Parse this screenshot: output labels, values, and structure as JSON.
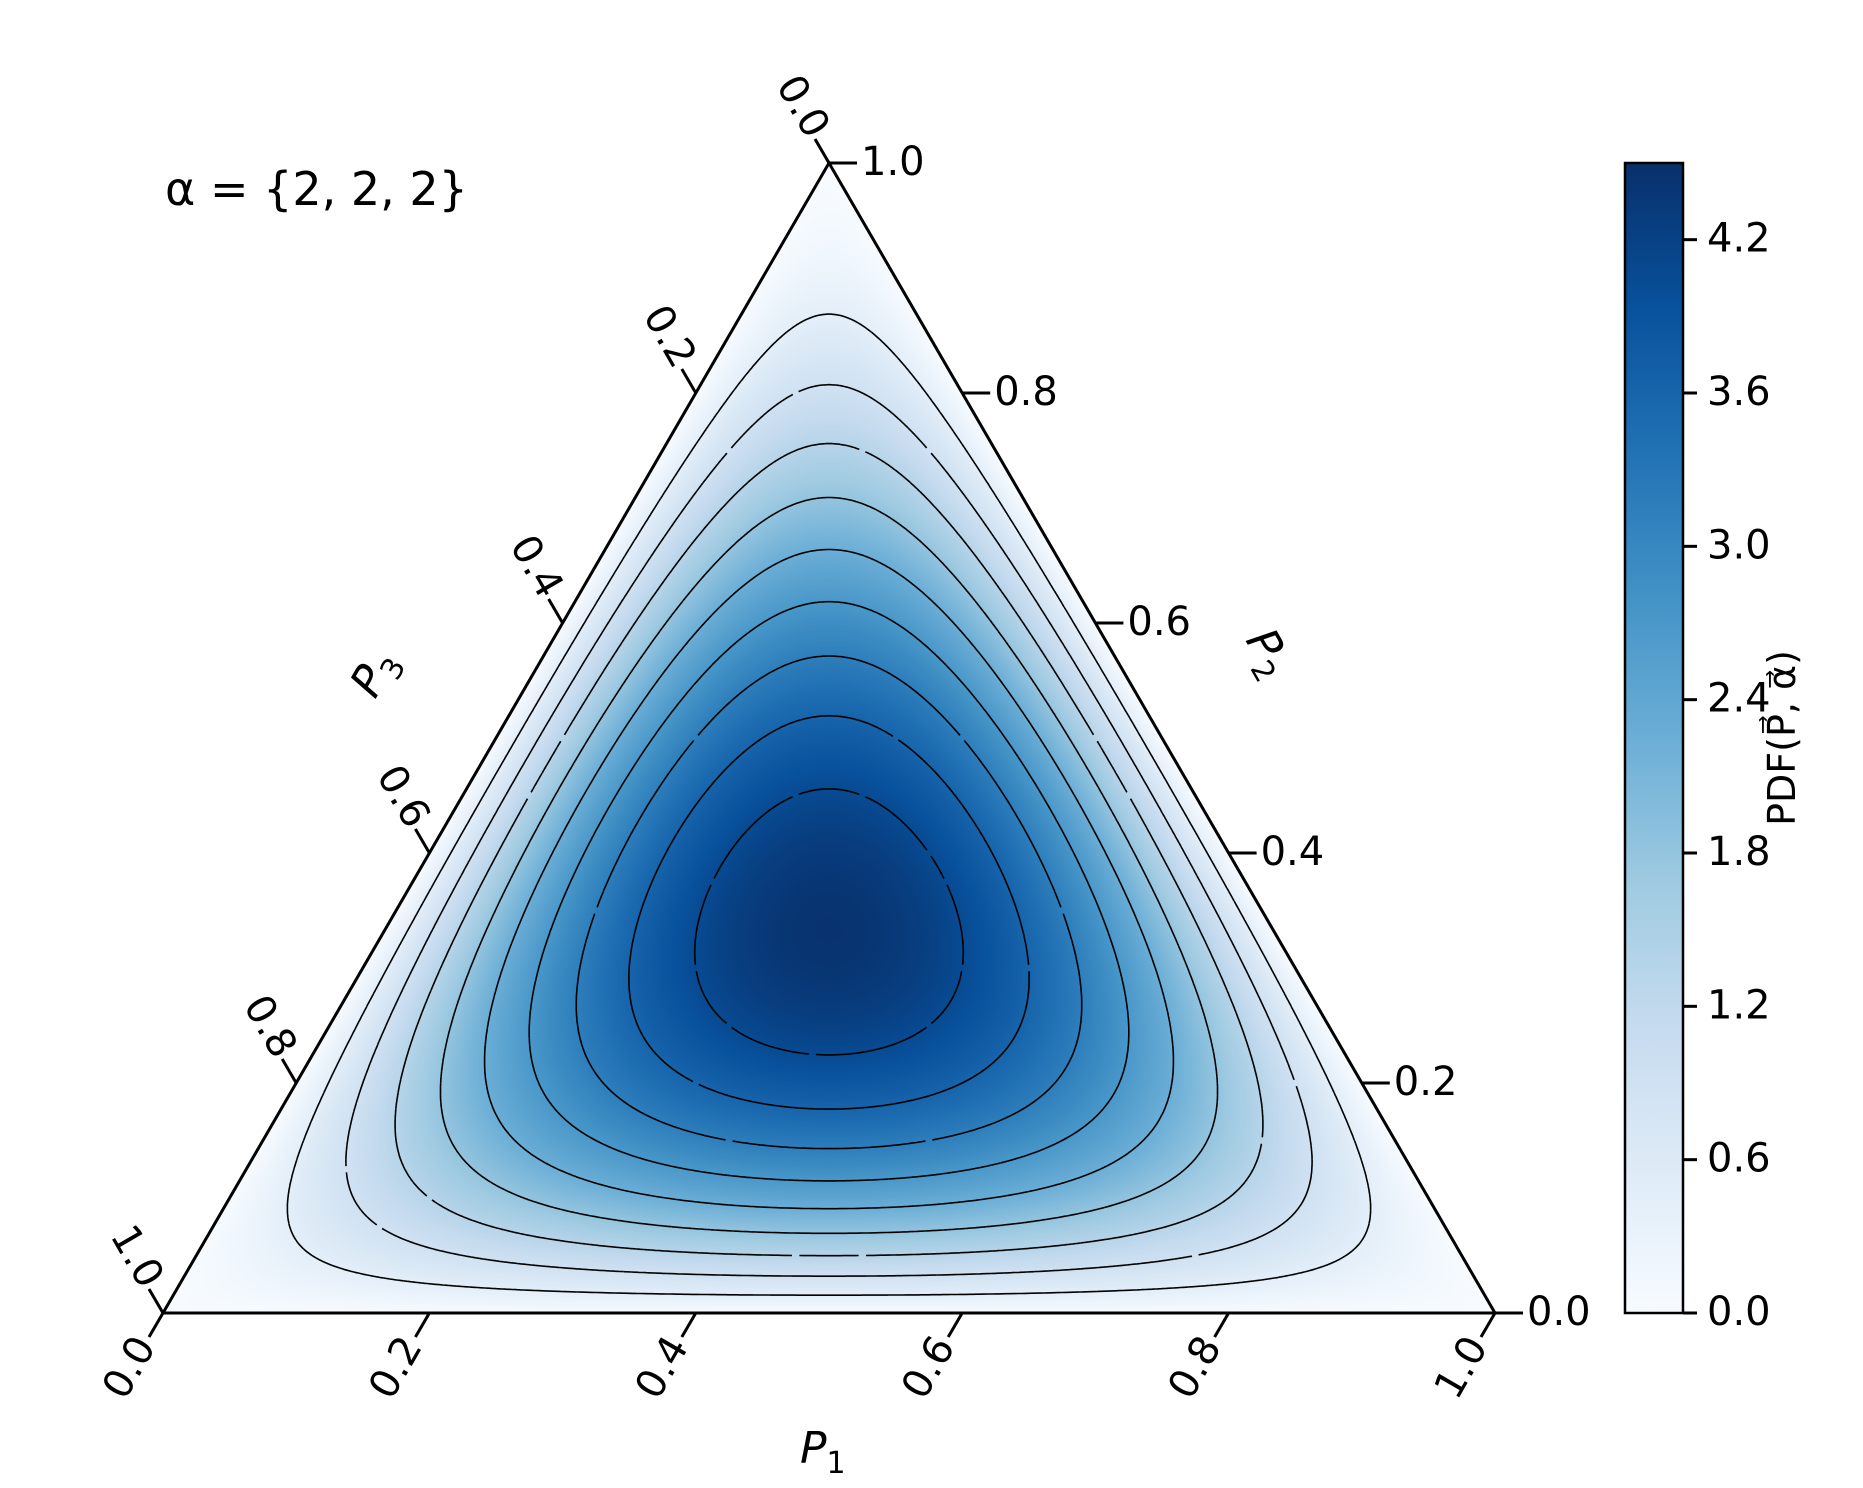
{
  "chart_data": {
    "type": "heatmap",
    "subtype": "ternary-contour",
    "annotation": "α = {2, 2, 2}",
    "alpha": [
      2,
      2,
      2
    ],
    "colormap": "Blues",
    "axes": {
      "bottom": {
        "label_main": "P",
        "label_sub": "1",
        "ticks": [
          "0.0",
          "0.2",
          "0.4",
          "0.6",
          "0.8",
          "1.0"
        ]
      },
      "right": {
        "label_main": "P",
        "label_sub": "2",
        "ticks": [
          "0.0",
          "0.2",
          "0.4",
          "0.6",
          "0.8",
          "1.0"
        ]
      },
      "left": {
        "label_main": "P",
        "label_sub": "3",
        "ticks": [
          "0.0",
          "0.2",
          "0.4",
          "0.6",
          "0.8",
          "1.0"
        ]
      }
    },
    "contour_levels": [
      0.45,
      0.9,
      1.35,
      1.8,
      2.25,
      2.7,
      3.15,
      3.6,
      4.05
    ],
    "contour_style": "dashed black",
    "colorbar": {
      "label": "PDF(P⃗, α⃗)",
      "range": [
        0.0,
        4.5
      ],
      "ticks": [
        "0.0",
        "0.6",
        "1.2",
        "1.8",
        "2.4",
        "3.0",
        "3.6",
        "4.2"
      ]
    }
  }
}
